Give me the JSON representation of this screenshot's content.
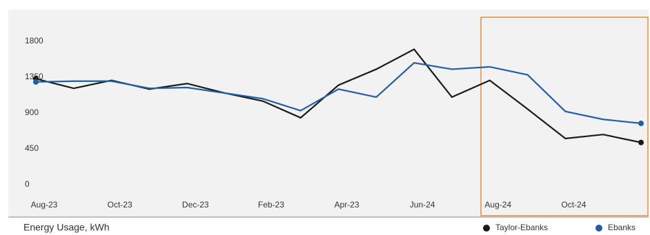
{
  "chart_data": {
    "type": "line",
    "title": "Energy Usage, kWh",
    "categories": [
      "Aug-23",
      null,
      "Oct-23",
      null,
      "Dec-23",
      null,
      "Feb-23",
      null,
      "Apr-23",
      null,
      "Jun-24",
      null,
      "Aug-24",
      null,
      "Oct-24",
      null,
      null
    ],
    "series": [
      {
        "name": "Taylor-Ebanks",
        "color": "#1a1a1a",
        "values": [
          1330,
          1210,
          1310,
          1200,
          1270,
          1150,
          1050,
          840,
          1250,
          1450,
          1700,
          1100,
          1310,
          950,
          580,
          630,
          530
        ]
      },
      {
        "name": "Ebanks",
        "color": "#1f5fa8",
        "values": [
          1290,
          1300,
          1300,
          1210,
          1220,
          1150,
          1080,
          930,
          1200,
          1100,
          1530,
          1450,
          1480,
          1380,
          920,
          820,
          770
        ]
      }
    ],
    "ylim": [
      0,
      1800
    ],
    "yticks": [
      0,
      450,
      900,
      1350,
      1800
    ],
    "legend": "bottom-right"
  }
}
